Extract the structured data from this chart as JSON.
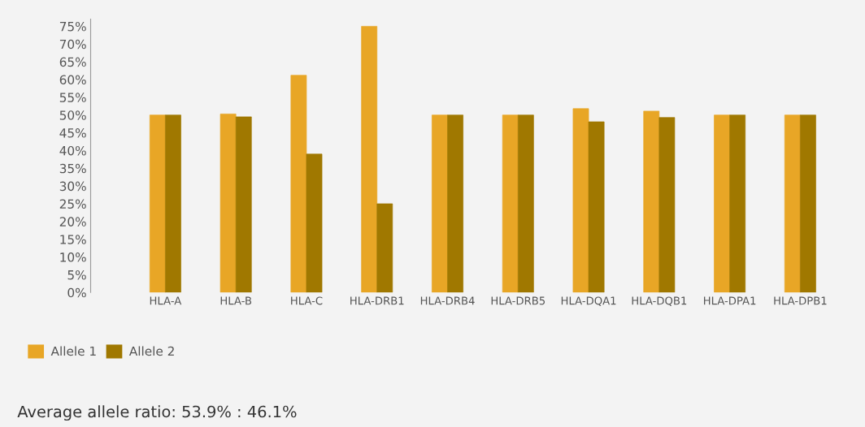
{
  "chart_data": {
    "type": "bar",
    "categories": [
      "HLA-A",
      "HLA-B",
      "HLA-C",
      "HLA-DRB1",
      "HLA-DRB4",
      "HLA-DRB5",
      "HLA-DQA1",
      "HLA-DQB1",
      "HLA-DPA1",
      "HLA-DPB1"
    ],
    "series": [
      {
        "name": "Allele 1",
        "color": "#e8a626",
        "values": [
          50,
          50.3,
          61.2,
          75,
          50,
          50,
          51.8,
          51.1,
          50,
          50
        ]
      },
      {
        "name": "Allele 2",
        "color": "#a07800",
        "values": [
          50,
          49.5,
          39,
          25,
          50,
          50,
          48.1,
          49.3,
          50,
          50
        ]
      }
    ],
    "ylim": [
      0,
      77
    ],
    "yticks": [
      {
        "value": 0,
        "label": "0%"
      },
      {
        "value": 5,
        "label": "5%"
      },
      {
        "value": 10,
        "label": "10%"
      },
      {
        "value": 15,
        "label": "15%"
      },
      {
        "value": 20,
        "label": "20%"
      },
      {
        "value": 25,
        "label": "25%"
      },
      {
        "value": 30,
        "label": "30%"
      },
      {
        "value": 35,
        "label": "35%"
      },
      {
        "value": 40,
        "label": "40%"
      },
      {
        "value": 45,
        "label": "45%"
      },
      {
        "value": 50,
        "label": "50%"
      },
      {
        "value": 55,
        "label": "55%"
      },
      {
        "value": 60,
        "label": "60%"
      },
      {
        "value": 65,
        "label": "65%"
      },
      {
        "value": 70,
        "label": "70%"
      },
      {
        "value": 75,
        "label": "75%"
      }
    ],
    "grid": false,
    "legend": "bottom left",
    "annotations": [
      "Average allele ratio: 53.9% : 46.1%"
    ]
  }
}
